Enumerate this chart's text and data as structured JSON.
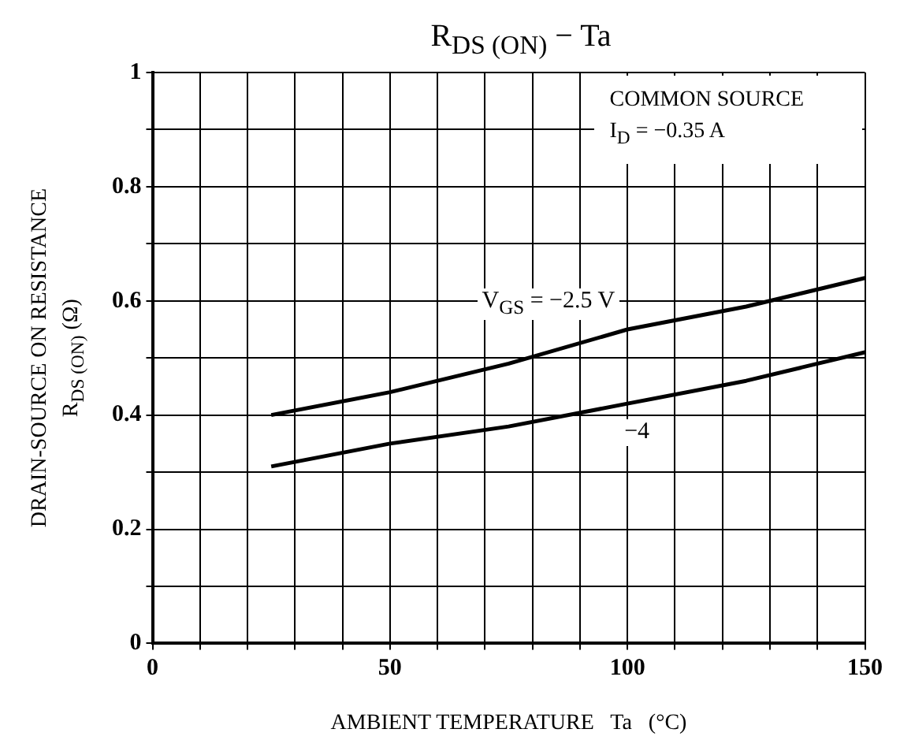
{
  "chart_data": {
    "type": "line",
    "title": "R$_{DS (ON)}$ − Ta",
    "xlabel": "AMBIENT TEMPERATURE   Ta   (°C)",
    "ylabel": "DRAIN-SOURCE ON RESISTANCE\nR$_{DS (ON)}$   (Ω)",
    "x": [
      25,
      50,
      75,
      100,
      125,
      150
    ],
    "series": [
      {
        "name": "V$_{GS}$ = −2.5 V",
        "color": "#000000",
        "values": [
          0.4,
          0.44,
          0.49,
          0.55,
          0.59,
          0.64
        ]
      },
      {
        "name": "−4",
        "color": "#000000",
        "values": [
          0.31,
          0.35,
          0.38,
          0.42,
          0.46,
          0.51
        ]
      }
    ],
    "xlim": [
      0,
      150
    ],
    "xticks": [
      0,
      {
        "value": 10,
        "label": null
      },
      {
        "value": 20,
        "label": null
      },
      {
        "value": 30,
        "label": null
      },
      {
        "value": 40,
        "label": null
      },
      50,
      {
        "value": 60,
        "label": null
      },
      {
        "value": 70,
        "label": null
      },
      {
        "value": 80,
        "label": null
      },
      {
        "value": 90,
        "label": null
      },
      100,
      {
        "value": 110,
        "label": null
      },
      {
        "value": 120,
        "label": null
      },
      {
        "value": 130,
        "label": null
      },
      {
        "value": 140,
        "label": null
      },
      150
    ],
    "ylim": [
      0,
      1
    ],
    "yticks": [
      0,
      {
        "value": 0.1,
        "label": null
      },
      0.2,
      {
        "value": 0.3,
        "label": null
      },
      0.4,
      {
        "value": 0.5,
        "label": null
      },
      0.6,
      {
        "value": 0.7,
        "label": null
      },
      0.8,
      {
        "value": 0.9,
        "label": null
      },
      1
    ],
    "annotations": [
      "COMMON SOURCE",
      "I$_{D}$ = −0.35 A"
    ],
    "grid": true,
    "legend": false,
    "marker": "none",
    "line_style": "solid"
  }
}
